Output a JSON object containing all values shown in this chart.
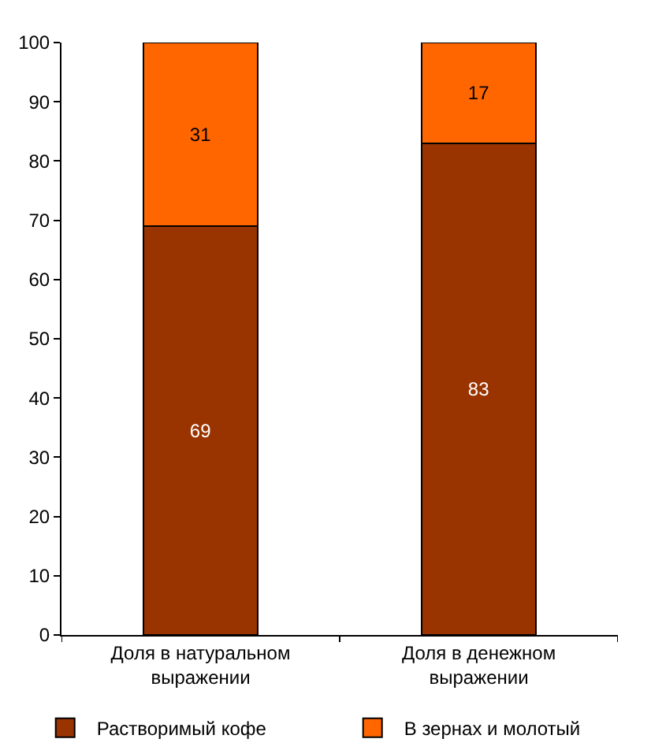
{
  "chart_data": {
    "type": "bar",
    "stacked": true,
    "categories": [
      "Доля в натуральном выражении",
      "Доля в денежном выражении"
    ],
    "series": [
      {
        "name": "Растворимый кофе",
        "color": "#993300",
        "values": [
          69,
          83
        ]
      },
      {
        "name": "В зернах и молотый",
        "color": "#ff6600",
        "values": [
          31,
          17
        ]
      }
    ],
    "ylim": [
      0,
      100
    ],
    "yticks": [
      0,
      10,
      20,
      30,
      40,
      50,
      60,
      70,
      80,
      90,
      100
    ],
    "legend": "bottom",
    "data_labels": true
  }
}
